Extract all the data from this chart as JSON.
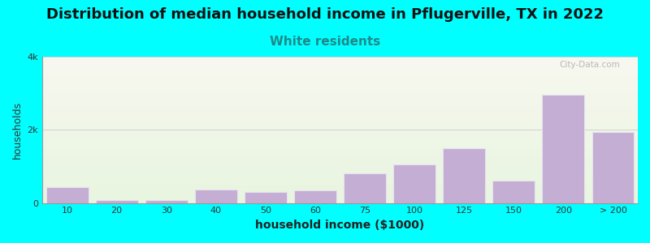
{
  "title": "Distribution of median household income in Pflugerville, TX in 2022",
  "subtitle": "White residents",
  "xlabel": "household income ($1000)",
  "ylabel": "households",
  "background_color": "#00FFFF",
  "plot_bg_gradient_top": "#e8f5e0",
  "plot_bg_gradient_bottom": "#f8f8f0",
  "bar_color": "#c4aed4",
  "bar_edge_color": "#e8e0f0",
  "categories": [
    "10",
    "20",
    "30",
    "40",
    "50",
    "60",
    "75",
    "100",
    "125",
    "150",
    "200",
    "> 200"
  ],
  "values": [
    430,
    70,
    80,
    360,
    290,
    350,
    820,
    1050,
    1500,
    620,
    2950,
    1950
  ],
  "ylim": [
    0,
    4000
  ],
  "ytick_labels": [
    "0",
    "2k",
    "4k"
  ],
  "ytick_vals": [
    0,
    2000,
    4000
  ],
  "title_fontsize": 13,
  "subtitle_fontsize": 11,
  "subtitle_color": "#208888",
  "watermark": "City-Data.com"
}
